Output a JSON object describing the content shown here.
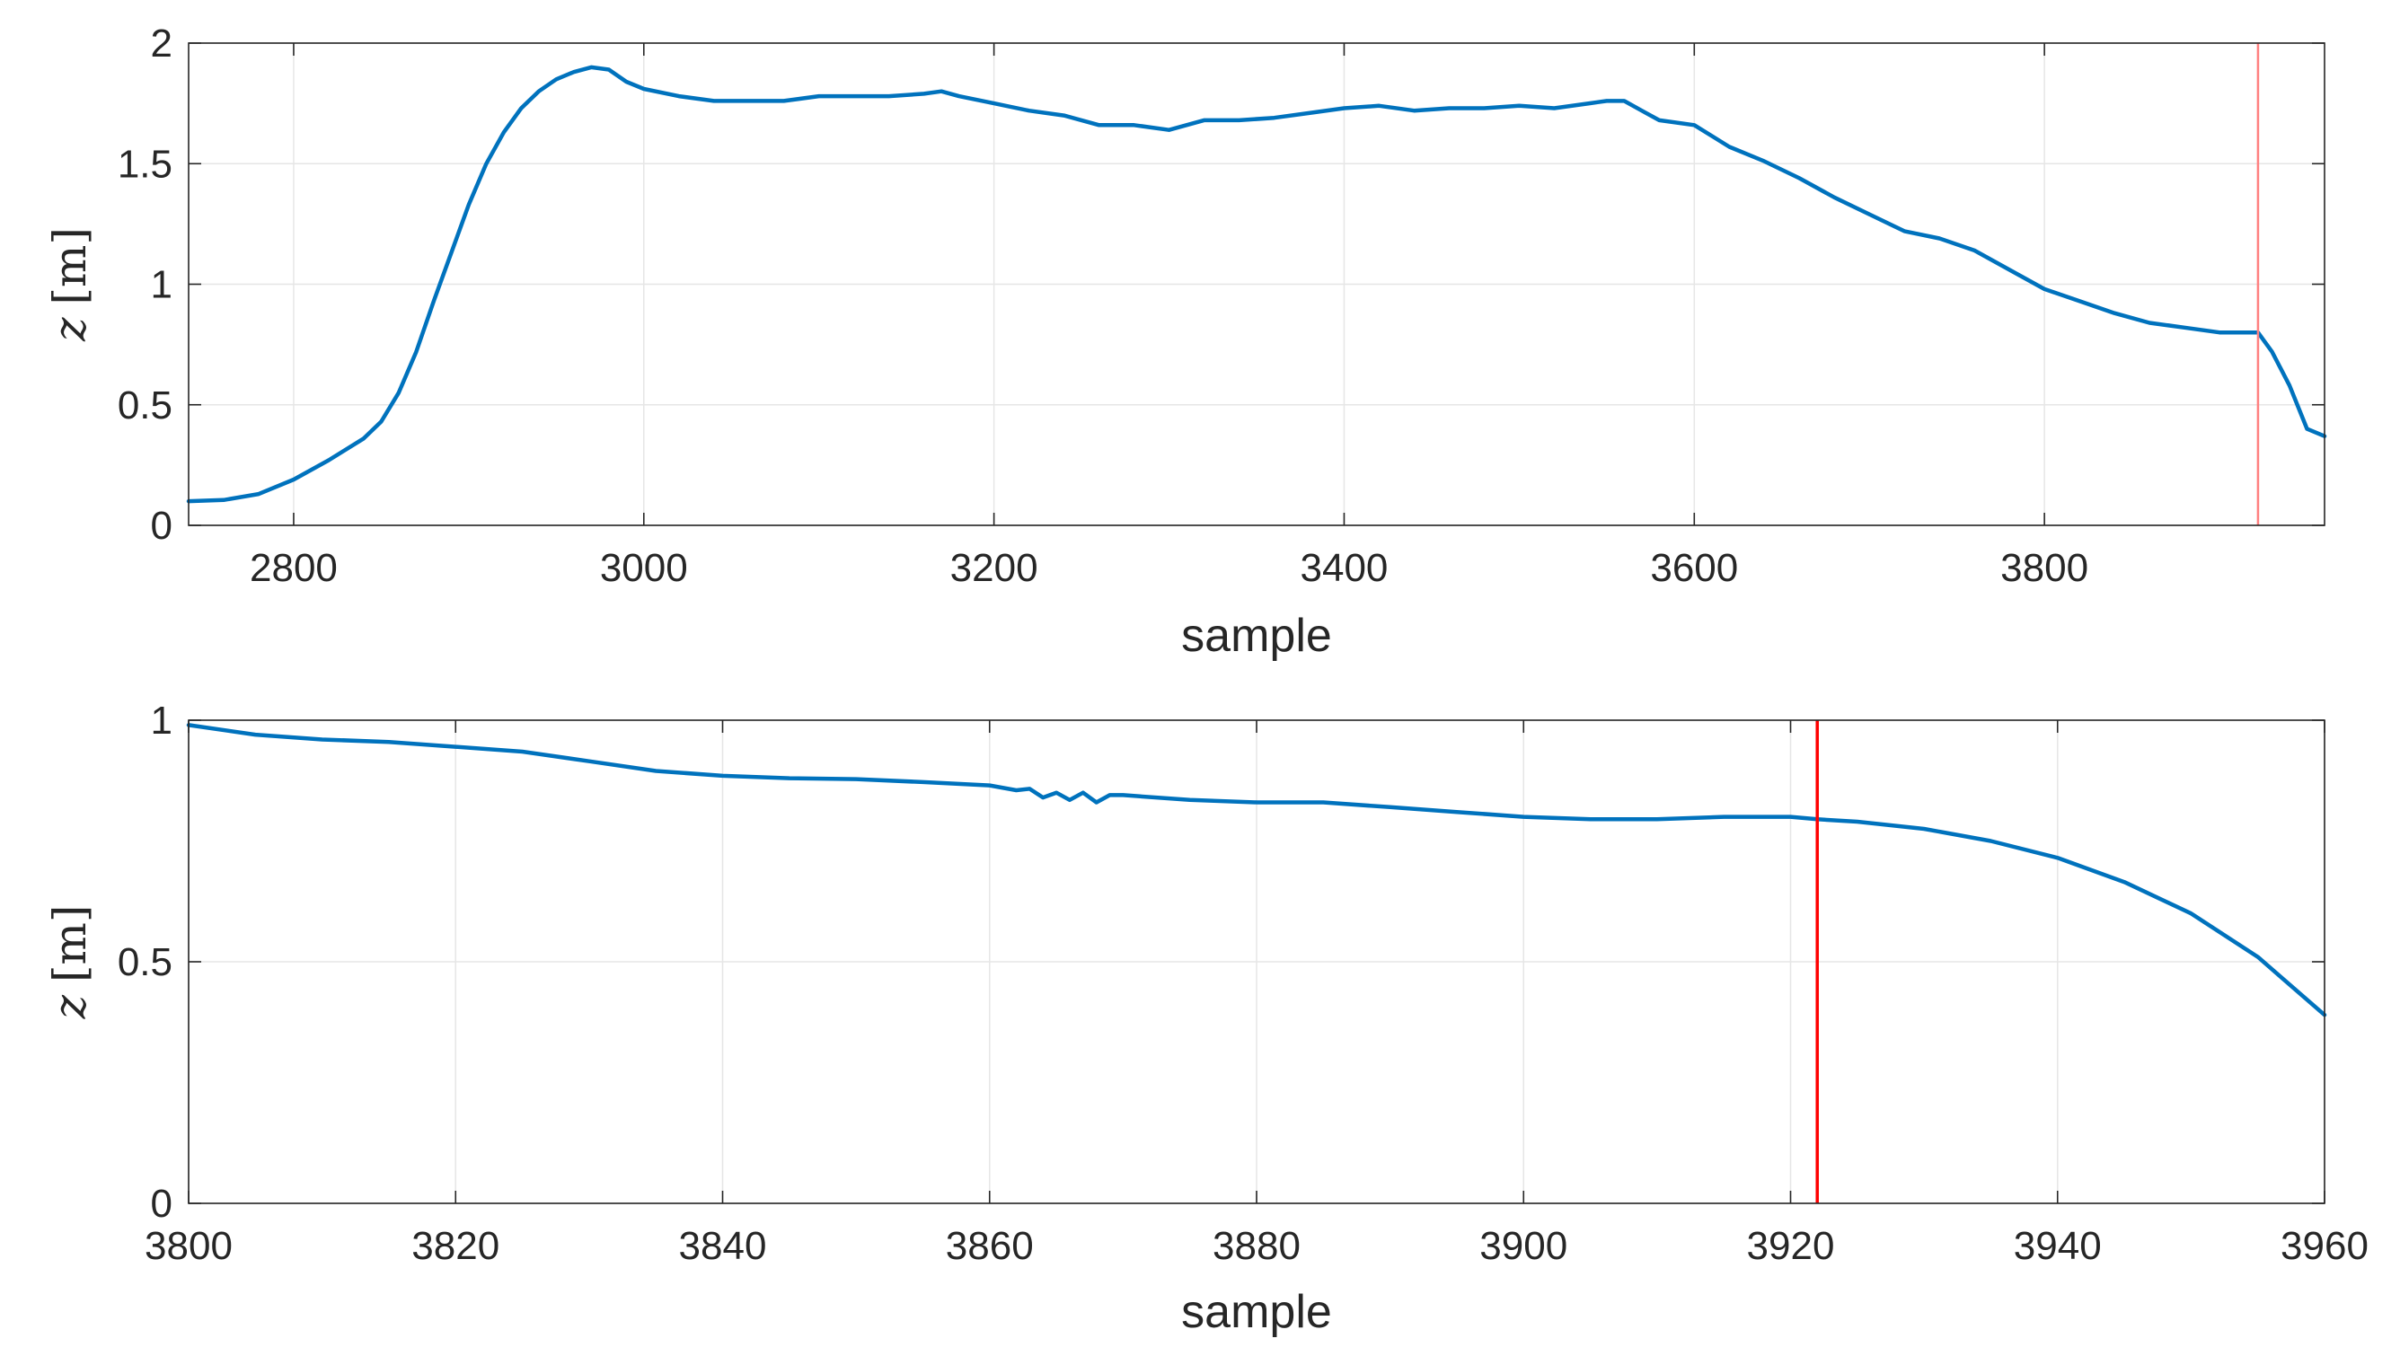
{
  "colors": {
    "series": "#0072BD",
    "marker": "#FF0000",
    "grid": "#E6E6E6",
    "axis": "#262626"
  },
  "chart_data": [
    {
      "type": "line",
      "title": "",
      "xlabel": "sample",
      "ylabel_var": "z",
      "ylabel_unit": "[m]",
      "xlim": [
        2740,
        3960
      ],
      "ylim": [
        0,
        2
      ],
      "xticks": [
        2800,
        3000,
        3200,
        3400,
        3600,
        3800
      ],
      "yticks": [
        0,
        0.5,
        1,
        1.5,
        2
      ],
      "ytick_labels": [
        "0",
        "0.5",
        "1",
        "1.5",
        "2"
      ],
      "grid": true,
      "legend": "none",
      "vline": {
        "x": 3922,
        "color": "#FF8080"
      },
      "series": [
        {
          "color": "#0072BD",
          "x": [
            2740,
            2760,
            2780,
            2800,
            2820,
            2840,
            2850,
            2860,
            2870,
            2880,
            2890,
            2900,
            2910,
            2920,
            2930,
            2940,
            2950,
            2960,
            2970,
            2980,
            2990,
            3000,
            3020,
            3040,
            3060,
            3080,
            3100,
            3120,
            3140,
            3160,
            3170,
            3180,
            3200,
            3220,
            3240,
            3260,
            3280,
            3300,
            3310,
            3320,
            3340,
            3360,
            3380,
            3400,
            3420,
            3440,
            3460,
            3480,
            3500,
            3520,
            3540,
            3550,
            3560,
            3570,
            3580,
            3600,
            3620,
            3640,
            3660,
            3680,
            3700,
            3720,
            3740,
            3760,
            3780,
            3800,
            3820,
            3840,
            3860,
            3880,
            3900,
            3922,
            3930,
            3940,
            3950,
            3960
          ],
          "y": [
            0.1,
            0.105,
            0.13,
            0.19,
            0.27,
            0.36,
            0.43,
            0.55,
            0.72,
            0.93,
            1.13,
            1.33,
            1.5,
            1.63,
            1.73,
            1.8,
            1.85,
            1.88,
            1.9,
            1.89,
            1.84,
            1.81,
            1.78,
            1.76,
            1.76,
            1.76,
            1.78,
            1.78,
            1.78,
            1.79,
            1.8,
            1.78,
            1.75,
            1.72,
            1.7,
            1.66,
            1.66,
            1.64,
            1.66,
            1.68,
            1.68,
            1.69,
            1.71,
            1.73,
            1.74,
            1.72,
            1.73,
            1.73,
            1.74,
            1.73,
            1.75,
            1.76,
            1.76,
            1.72,
            1.68,
            1.66,
            1.57,
            1.51,
            1.44,
            1.36,
            1.29,
            1.22,
            1.19,
            1.14,
            1.06,
            0.98,
            0.93,
            0.88,
            0.84,
            0.82,
            0.8,
            0.8,
            0.72,
            0.58,
            0.4,
            0.37
          ]
        }
      ]
    },
    {
      "type": "line",
      "title": "",
      "xlabel": "sample",
      "ylabel_var": "z",
      "ylabel_unit": "[m]",
      "xlim": [
        3800,
        3960
      ],
      "ylim": [
        0,
        1
      ],
      "xticks": [
        3800,
        3820,
        3840,
        3860,
        3880,
        3900,
        3920,
        3940,
        3960
      ],
      "yticks": [
        0,
        0.5,
        1
      ],
      "ytick_labels": [
        "0",
        "0.5",
        "1"
      ],
      "grid": true,
      "legend": "none",
      "vline": {
        "x": 3922,
        "color": "#FF0000"
      },
      "series": [
        {
          "color": "#0072BD",
          "x": [
            3800,
            3805,
            3810,
            3815,
            3820,
            3825,
            3830,
            3835,
            3840,
            3845,
            3850,
            3855,
            3860,
            3862,
            3863,
            3864,
            3865,
            3866,
            3867,
            3868,
            3869,
            3870,
            3875,
            3880,
            3885,
            3890,
            3895,
            3900,
            3905,
            3910,
            3915,
            3920,
            3922,
            3925,
            3930,
            3935,
            3940,
            3945,
            3950,
            3955,
            3960
          ],
          "y": [
            0.99,
            0.97,
            0.96,
            0.955,
            0.945,
            0.935,
            0.915,
            0.895,
            0.885,
            0.88,
            0.878,
            0.872,
            0.865,
            0.855,
            0.858,
            0.84,
            0.85,
            0.835,
            0.85,
            0.83,
            0.845,
            0.845,
            0.835,
            0.83,
            0.83,
            0.82,
            0.81,
            0.8,
            0.795,
            0.795,
            0.8,
            0.8,
            0.795,
            0.79,
            0.775,
            0.75,
            0.715,
            0.665,
            0.6,
            0.51,
            0.39
          ]
        }
      ]
    }
  ]
}
